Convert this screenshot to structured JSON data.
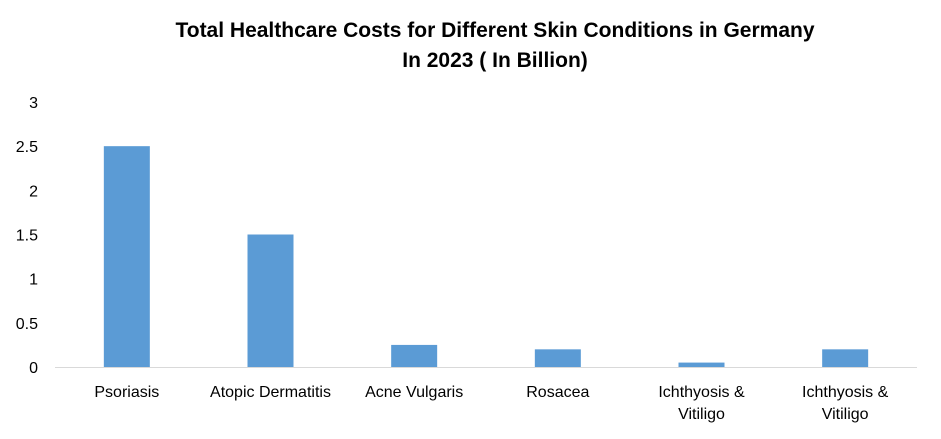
{
  "chart_data": {
    "type": "bar",
    "title_line1": "Total Healthcare Costs for Different Skin Conditions  in Germany",
    "title_line2": "In 2023 ( In Billion)",
    "categories": [
      [
        "Psoriasis"
      ],
      [
        "Atopic Dermatitis"
      ],
      [
        "Acne Vulgaris"
      ],
      [
        "Rosacea"
      ],
      [
        "Ichthyosis &",
        "Vitiligo"
      ],
      [
        "Ichthyosis &",
        "Vitiligo"
      ]
    ],
    "values": [
      2.5,
      1.5,
      0.25,
      0.2,
      0.05,
      0.2
    ],
    "y_ticks": [
      "0",
      "0.5",
      "1",
      "1.5",
      "2",
      "2.5",
      "3"
    ],
    "ylim": [
      0,
      3
    ],
    "grid": false,
    "bar_color": "#5B9BD5",
    "axis_color": "#D9D9D9"
  }
}
